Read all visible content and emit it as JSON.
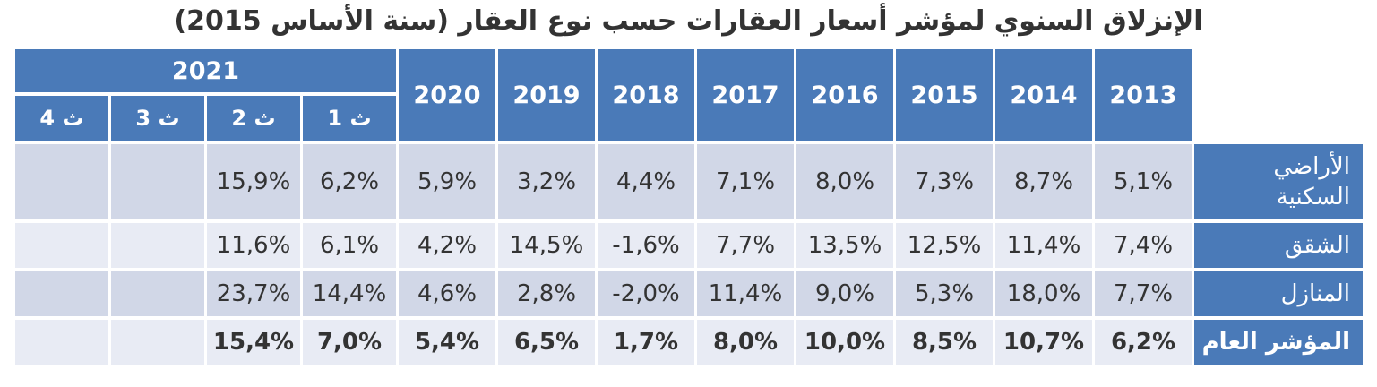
{
  "title": "الإنزلاق السنوي لمؤشر أسعار العقارات حسب نوع العقار (سنة الأساس 2015)",
  "header": {
    "year_2021": "2021",
    "quarters": [
      "ث 4",
      "ث 3",
      "ث 2",
      "ث 1"
    ],
    "years": [
      "2020",
      "2019",
      "2018",
      "2017",
      "2016",
      "2015",
      "2014",
      "2013"
    ]
  },
  "rows": [
    {
      "label": "الأراضي السكنية",
      "quarters": [
        "",
        "",
        "15,9%",
        "6,2%"
      ],
      "years": [
        "5,9%",
        "3,2%",
        "4,4%",
        "7,1%",
        "8,0%",
        "7,3%",
        "8,7%",
        "5,1%"
      ]
    },
    {
      "label": "الشقق",
      "quarters": [
        "",
        "",
        "11,6%",
        "6,1%"
      ],
      "years": [
        "4,2%",
        "14,5%",
        "-1,6%",
        "7,7%",
        "13,5%",
        "12,5%",
        "11,4%",
        "7,4%"
      ]
    },
    {
      "label": "المنازل",
      "quarters": [
        "",
        "",
        "23,7%",
        "14,4%"
      ],
      "years": [
        "4,6%",
        "2,8%",
        "-2,0%",
        "11,4%",
        "9,0%",
        "5,3%",
        "18,0%",
        "7,7%"
      ]
    },
    {
      "label": "المؤشر العام",
      "quarters": [
        "",
        "",
        "15,4%",
        "7,0%"
      ],
      "years": [
        "5,4%",
        "6,5%",
        "1,7%",
        "8,0%",
        "10,0%",
        "8,5%",
        "10,7%",
        "6,2%"
      ]
    }
  ]
}
